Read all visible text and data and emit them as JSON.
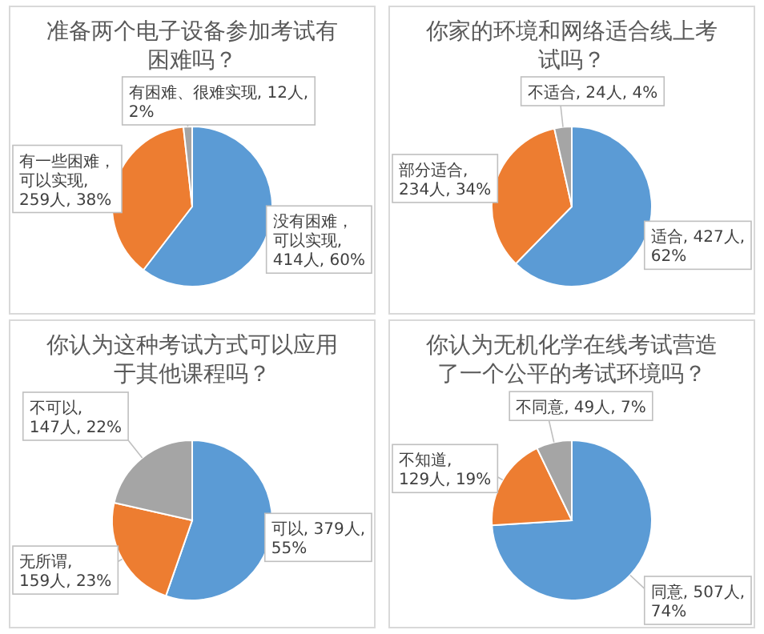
{
  "chart_data": [
    {
      "type": "pie",
      "title": "准备两个电子设备参加考试有困难吗？",
      "categories": [
        "没有困难，可以实现, 414人, 60%",
        "有一些困难，可以实现, 259人, 38%",
        "有困难、很难实现, 12人, 2%"
      ],
      "values": [
        414,
        259,
        12
      ],
      "colors": [
        "#5b9bd5",
        "#ed7d31",
        "#a5a5a5"
      ]
    },
    {
      "type": "pie",
      "title": "你家的环境和网络适合线上考试吗？",
      "categories": [
        "适合, 427人, 62%",
        "部分适合, 234人, 34%",
        "不适合, 24人, 4%"
      ],
      "values": [
        427,
        234,
        24
      ],
      "colors": [
        "#5b9bd5",
        "#ed7d31",
        "#a5a5a5"
      ]
    },
    {
      "type": "pie",
      "title": "你认为这种考试方式可以应用于其他课程吗？",
      "categories": [
        "可以, 379人, 55%",
        "无所谓, 159人, 23%",
        "不可以, 147人, 22%"
      ],
      "values": [
        379,
        159,
        147
      ],
      "colors": [
        "#5b9bd5",
        "#ed7d31",
        "#a5a5a5"
      ]
    },
    {
      "type": "pie",
      "title": "你认为无机化学在线考试营造了一个公平的考试环境吗？",
      "categories": [
        "同意, 507人, 74%",
        "不知道, 129人, 19%",
        "不同意, 49人, 7%"
      ],
      "values": [
        507,
        129,
        49
      ],
      "colors": [
        "#5b9bd5",
        "#ed7d31",
        "#a5a5a5"
      ]
    }
  ]
}
